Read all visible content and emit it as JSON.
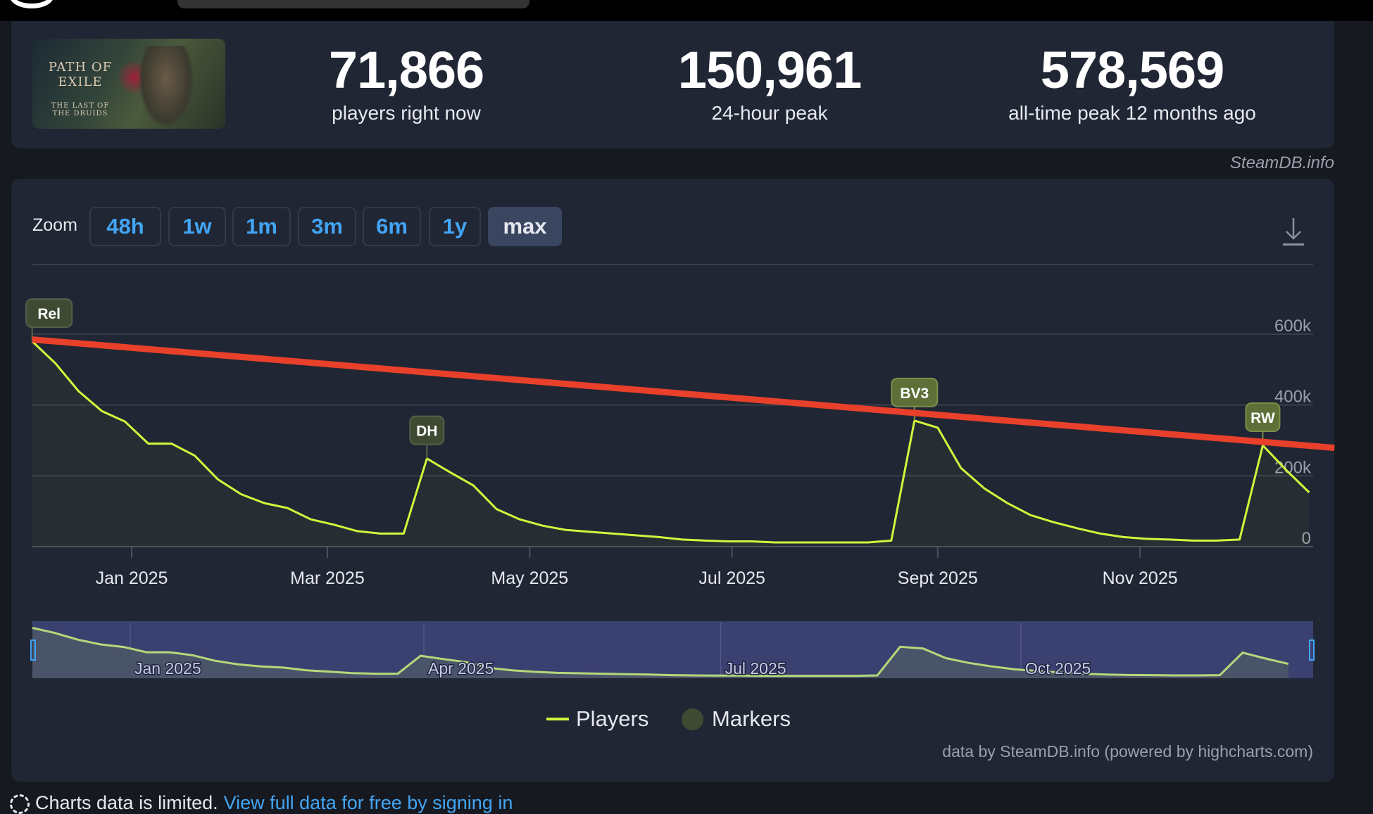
{
  "stats": [
    {
      "value": "71,866",
      "label": "players right now"
    },
    {
      "value": "150,961",
      "label": "24-hour peak"
    },
    {
      "value": "578,569",
      "label": "all-time peak 12 months ago"
    }
  ],
  "cover": {
    "title": "PATH OF EXILE",
    "subtitle": "THE LAST OF THE DRUIDS"
  },
  "watermark": "SteamDB.info",
  "zoom": {
    "label": "Zoom",
    "buttons": [
      "48h",
      "1w",
      "1m",
      "3m",
      "6m",
      "1y",
      "max"
    ],
    "active": "max"
  },
  "legend": {
    "players": "Players",
    "markers": "Markers"
  },
  "credits": "data by SteamDB.info (powered by highcharts.com)",
  "limited": {
    "text": "Charts data is limited.",
    "link": "View full data for free by signing in"
  },
  "colors": {
    "line": "#d4f53c",
    "trend": "#e8402a",
    "marker_dark": "#3f4a33",
    "marker_light": "#5e7038",
    "navigator": "#3a4070"
  },
  "chart_data": {
    "type": "line",
    "x_unit": "days since 2025-01-01",
    "x_start": -30,
    "x_step": 7,
    "players": [
      580000,
      518000,
      439000,
      383000,
      353000,
      291000,
      291000,
      257000,
      190000,
      148000,
      123000,
      109000,
      77000,
      62000,
      44000,
      37000,
      37000,
      249000,
      210000,
      173000,
      106000,
      77000,
      59000,
      47000,
      42000,
      37000,
      32000,
      27000,
      20000,
      17000,
      15000,
      15000,
      12000,
      12000,
      12000,
      12000,
      12000,
      17000,
      356000,
      336000,
      222000,
      165000,
      123000,
      89000,
      69000,
      52000,
      37000,
      27000,
      22000,
      20000,
      17000,
      17000,
      20000,
      286000,
      217000,
      153000
    ],
    "trend_line": {
      "from": [
        -30,
        585000
      ],
      "to": [
        362.6,
        279000
      ]
    },
    "markers": [
      {
        "day": -30,
        "label": "Rel"
      },
      {
        "day": 89,
        "label": "DH"
      },
      {
        "day": 236,
        "label": "BV3"
      },
      {
        "day": 341,
        "label": "RW"
      }
    ],
    "ylim": [
      0,
      600000
    ],
    "yticks": [
      {
        "v": 0,
        "label": "0"
      },
      {
        "v": 200000,
        "label": "200k"
      },
      {
        "v": 400000,
        "label": "400k"
      },
      {
        "v": 600000,
        "label": "600k"
      }
    ],
    "xticks": [
      {
        "day": 0,
        "label": "Jan 2025"
      },
      {
        "day": 59,
        "label": "Mar 2025"
      },
      {
        "day": 120,
        "label": "May 2025"
      },
      {
        "day": 181,
        "label": "Jul 2025"
      },
      {
        "day": 243,
        "label": "Sept 2025"
      },
      {
        "day": 304,
        "label": "Nov 2025"
      }
    ],
    "navigator_ticks": [
      {
        "day": 0,
        "label": "Jan 2025"
      },
      {
        "day": 90,
        "label": "Apr 2025"
      },
      {
        "day": 181,
        "label": "Jul 2025"
      },
      {
        "day": 273,
        "label": "Oct 2025"
      }
    ]
  }
}
